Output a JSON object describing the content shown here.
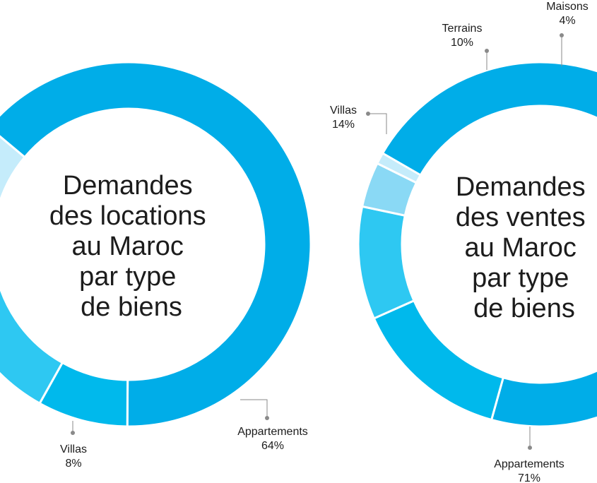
{
  "chart_data": [
    {
      "type": "pie",
      "title_lines": [
        "Demandes",
        "des locations",
        "au Maroc",
        "par type",
        "de biens"
      ],
      "slices": [
        {
          "label": "Appartements",
          "value": 64,
          "value_label": "64%",
          "color": "#00ade8"
        },
        {
          "label": "Villas",
          "value": 8,
          "value_label": "8%",
          "color": "#00b9ec"
        },
        {
          "label": "",
          "value": 15,
          "value_label": "",
          "color": "#2ec8f2"
        },
        {
          "label": "",
          "value": 1,
          "value_label": "",
          "color": "#6dd5f5"
        },
        {
          "label": "",
          "value": 12,
          "value_label": "",
          "color": "#c5ecfb"
        }
      ]
    },
    {
      "type": "pie",
      "title_lines": [
        "Demandes",
        "des ventes",
        "au Maroc",
        "par type",
        "de biens"
      ],
      "slices": [
        {
          "label": "Appartements",
          "value": 71,
          "value_label": "71%",
          "color": "#00ade8"
        },
        {
          "label": "Villas",
          "value": 14,
          "value_label": "14%",
          "color": "#00b9ec"
        },
        {
          "label": "Terrains",
          "value": 10,
          "value_label": "10%",
          "color": "#2ec8f2"
        },
        {
          "label": "Maisons",
          "value": 4,
          "value_label": "4%",
          "color": "#8ad9f5"
        },
        {
          "label": "",
          "value": 1,
          "value_label": "",
          "color": "#c5ecfb"
        }
      ]
    }
  ]
}
